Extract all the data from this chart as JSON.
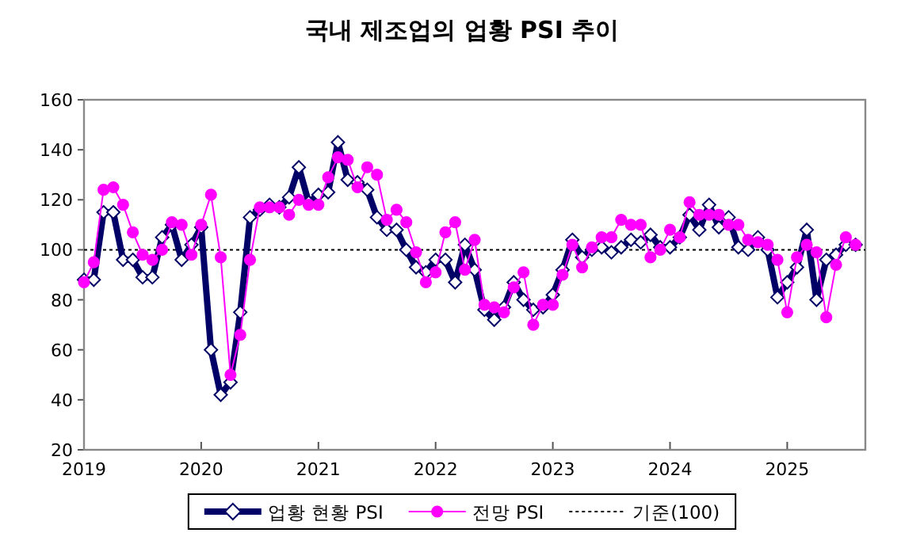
{
  "chart_data": {
    "type": "line",
    "title": "국내 제조업의 업황 PSI 추이",
    "x": [
      "2019-01",
      "2019-02",
      "2019-03",
      "2019-04",
      "2019-05",
      "2019-06",
      "2019-07",
      "2019-08",
      "2019-09",
      "2019-10",
      "2019-11",
      "2019-12",
      "2020-01",
      "2020-02",
      "2020-03",
      "2020-04",
      "2020-05",
      "2020-06",
      "2020-07",
      "2020-08",
      "2020-09",
      "2020-10",
      "2020-11",
      "2020-12",
      "2021-01",
      "2021-02",
      "2021-03",
      "2021-04",
      "2021-05",
      "2021-06",
      "2021-07",
      "2021-08",
      "2021-09",
      "2021-10",
      "2021-11",
      "2021-12",
      "2022-01",
      "2022-02",
      "2022-03",
      "2022-04",
      "2022-05",
      "2022-06",
      "2022-07",
      "2022-08",
      "2022-09",
      "2022-10",
      "2022-11",
      "2022-12",
      "2023-01",
      "2023-02",
      "2023-03",
      "2023-04",
      "2023-05",
      "2023-06",
      "2023-07",
      "2023-08",
      "2023-09",
      "2023-10",
      "2023-11",
      "2023-12",
      "2024-01",
      "2024-02",
      "2024-03",
      "2024-04",
      "2024-05",
      "2024-06",
      "2024-07",
      "2024-08",
      "2024-09",
      "2024-10",
      "2024-11",
      "2024-12",
      "2025-01",
      "2025-02",
      "2025-03",
      "2025-04",
      "2025-05",
      "2025-06",
      "2025-07",
      "2025-08"
    ],
    "series": [
      {
        "name": "업황 현황 PSI",
        "color": "#000066",
        "marker": "diamond",
        "values": [
          88,
          88,
          115,
          115,
          96,
          96,
          89,
          89,
          105,
          110,
          96,
          102,
          109,
          60,
          42,
          47,
          75,
          113,
          116,
          118,
          117,
          121,
          133,
          119,
          122,
          123,
          143,
          128,
          127,
          124,
          113,
          108,
          108,
          100,
          93,
          91,
          96,
          96,
          87,
          102,
          92,
          76,
          72,
          77,
          87,
          80,
          76,
          77,
          82,
          92,
          104,
          97,
          100,
          101,
          99,
          101,
          104,
          103,
          106,
          101,
          101,
          105,
          114,
          108,
          118,
          109,
          113,
          101,
          100,
          105,
          100,
          81,
          87,
          93,
          108,
          80,
          96,
          98,
          102,
          102
        ]
      },
      {
        "name": "전망 PSI",
        "color": "#ff00ff",
        "marker": "circle",
        "values": [
          87,
          95,
          124,
          125,
          118,
          107,
          98,
          96,
          100,
          111,
          110,
          98,
          110,
          122,
          97,
          50,
          66,
          96,
          117,
          117,
          117,
          114,
          120,
          118,
          118,
          129,
          137,
          136,
          125,
          133,
          130,
          112,
          116,
          111,
          99,
          87,
          91,
          107,
          111,
          92,
          104,
          78,
          77,
          75,
          85,
          91,
          70,
          78,
          78,
          90,
          102,
          93,
          101,
          105,
          105,
          112,
          110,
          110,
          97,
          100,
          108,
          105,
          119,
          114,
          114,
          114,
          110,
          110,
          104,
          103,
          102,
          96,
          75,
          97,
          102,
          99,
          73,
          94,
          105,
          102
        ]
      }
    ],
    "ylim": [
      20,
      160
    ],
    "yticks": [
      20,
      40,
      60,
      80,
      100,
      120,
      140,
      160
    ],
    "xlim": [
      "2019-01",
      "2025-09"
    ],
    "xticks": [
      {
        "value": "2019-01",
        "label": "2019"
      },
      {
        "value": "2020-01",
        "label": "2020"
      },
      {
        "value": "2021-01",
        "label": "2021"
      },
      {
        "value": "2022-01",
        "label": "2022"
      },
      {
        "value": "2023-01",
        "label": "2023"
      },
      {
        "value": "2024-01",
        "label": "2024"
      },
      {
        "value": "2025-01",
        "label": "2025"
      }
    ],
    "ref_lines": [
      {
        "axis": "y",
        "value": 100,
        "label": "기준(100)",
        "color": "#000000",
        "line_style": "dotted"
      }
    ],
    "legend": "bottom",
    "grid": false
  }
}
